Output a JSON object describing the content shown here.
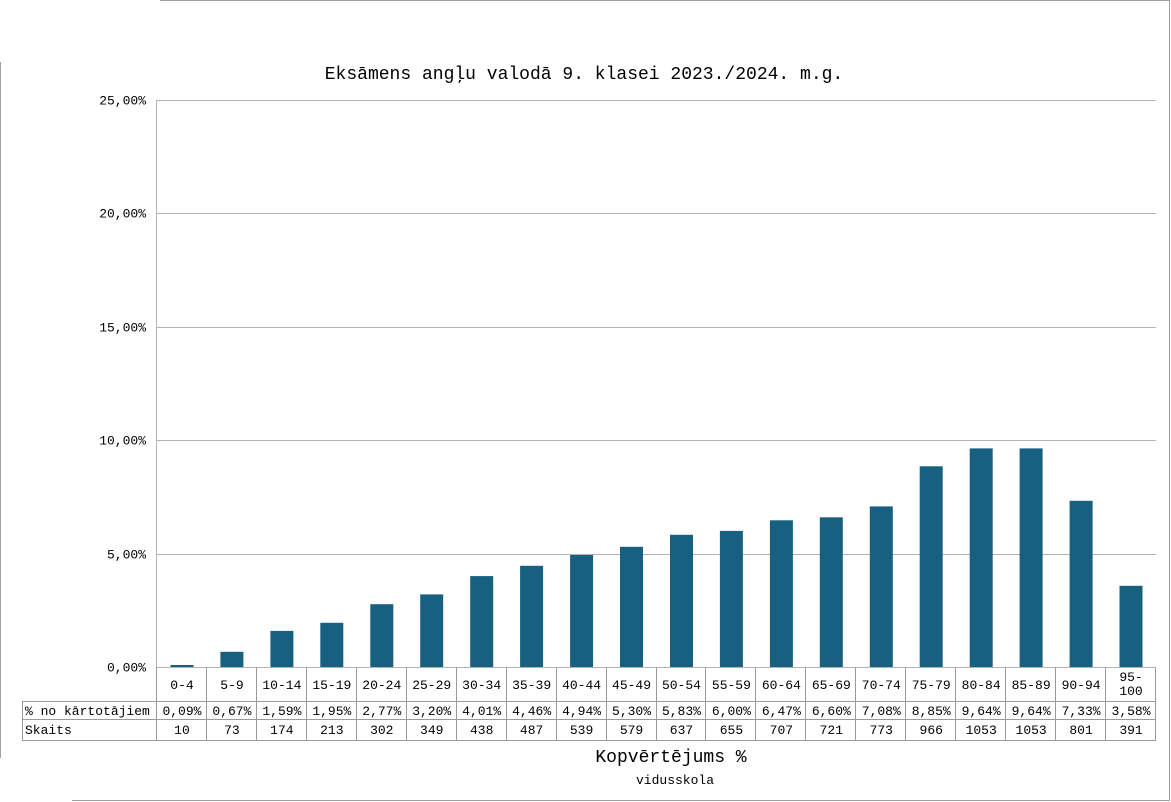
{
  "chart_data": {
    "type": "bar",
    "title": "Eksāmens angļu valodā 9. klasei 2023./2024. m.g.",
    "xlabel": "Kopvērtējums %",
    "subtitle": "vidusskola",
    "ylim": [
      0,
      25
    ],
    "yticks": [
      "0,00%",
      "5,00%",
      "10,00%",
      "15,00%",
      "20,00%",
      "25,00%"
    ],
    "grid": true,
    "color": "#17607f",
    "categories": [
      "0-4",
      "5-9",
      "10-14",
      "15-19",
      "20-24",
      "25-29",
      "30-34",
      "35-39",
      "40-44",
      "45-49",
      "50-54",
      "55-59",
      "60-64",
      "65-69",
      "70-74",
      "75-79",
      "80-84",
      "85-89",
      "90-94",
      "95-100"
    ],
    "values": [
      0.09,
      0.67,
      1.59,
      1.95,
      2.77,
      3.2,
      4.01,
      4.46,
      4.94,
      5.3,
      5.83,
      6.0,
      6.47,
      6.6,
      7.08,
      8.85,
      9.64,
      9.64,
      7.33,
      3.58
    ],
    "table": {
      "rows": [
        {
          "label": "% no kārtotājiem",
          "cells": [
            "0,09%",
            "0,67%",
            "1,59%",
            "1,95%",
            "2,77%",
            "3,20%",
            "4,01%",
            "4,46%",
            "4,94%",
            "5,30%",
            "5,83%",
            "6,00%",
            "6,47%",
            "6,60%",
            "7,08%",
            "8,85%",
            "9,64%",
            "9,64%",
            "7,33%",
            "3,58%"
          ]
        },
        {
          "label": "Skaits",
          "cells": [
            "10",
            "73",
            "174",
            "213",
            "302",
            "349",
            "438",
            "487",
            "539",
            "579",
            "637",
            "655",
            "707",
            "721",
            "773",
            "966",
            "1053",
            "1053",
            "801",
            "391"
          ]
        }
      ]
    }
  }
}
